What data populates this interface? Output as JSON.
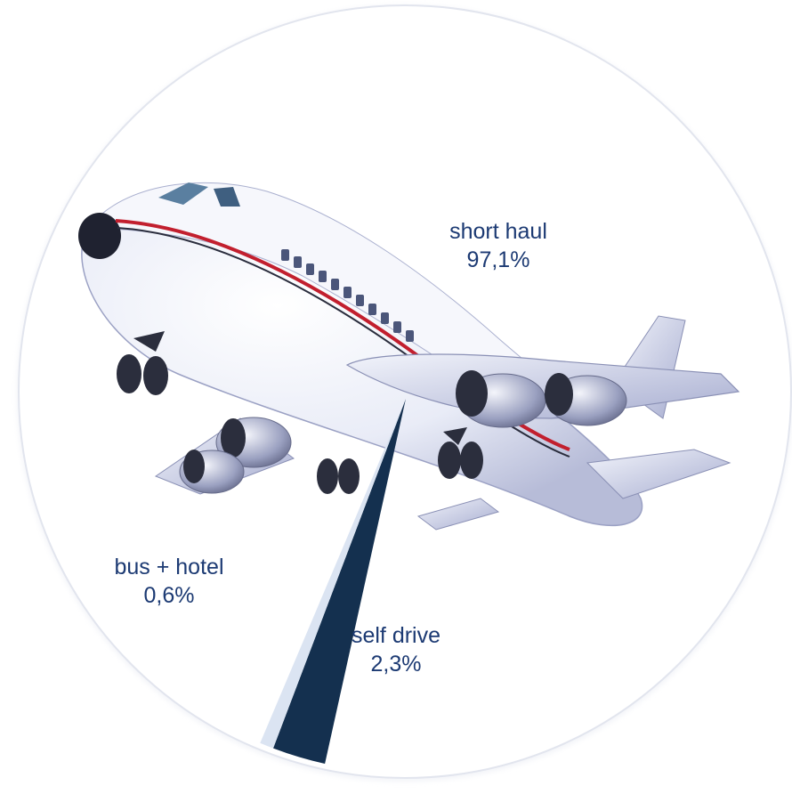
{
  "chart_data": {
    "type": "pie",
    "slices": [
      {
        "label": "short haul",
        "value_label": "97,1%",
        "value": 97.1,
        "color": "#ffffff"
      },
      {
        "label": "self drive",
        "value_label": "2,3%",
        "value": 2.3,
        "color": "#14304f"
      },
      {
        "label": "bus + hotel",
        "value_label": "0,6%",
        "value": 0.6,
        "color": "#dbe4f2"
      }
    ],
    "background_image": "airplane-illustration"
  }
}
